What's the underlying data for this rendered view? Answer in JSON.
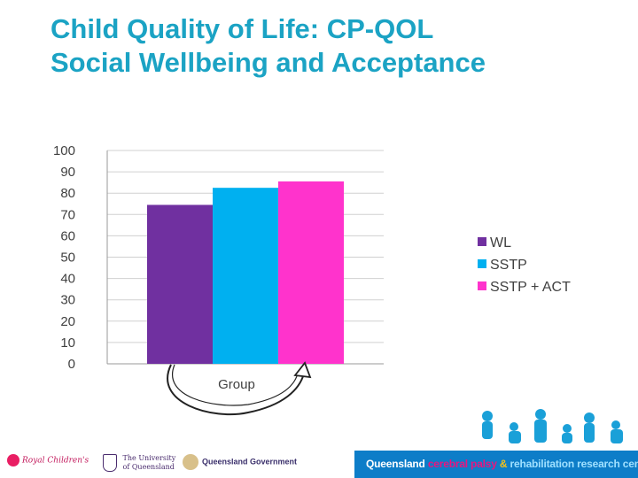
{
  "slide": {
    "title_line1": "Child Quality of Life: CP-QOL",
    "title_line2": "Social Wellbeing and Acceptance"
  },
  "chart_data": {
    "type": "bar",
    "title": "",
    "xlabel": "Group",
    "ylabel": "",
    "ylim": [
      0,
      100
    ],
    "yticks": [
      0,
      10,
      20,
      30,
      40,
      50,
      60,
      70,
      80,
      90,
      100
    ],
    "grid": true,
    "legend_position": "right",
    "categories": [
      "Group"
    ],
    "series": [
      {
        "name": "WL",
        "values": [
          74.5
        ],
        "color": "#7030a0"
      },
      {
        "name": "SSTP",
        "values": [
          82.5
        ],
        "color": "#00b0f0"
      },
      {
        "name": "SSTP + ACT",
        "values": [
          85.5
        ],
        "color": "#ff33cc"
      }
    ],
    "annotation": "curved-arrow-from-WL-to-SSTP+ACT"
  },
  "footer": {
    "logo_rch": "Royal Children's",
    "logo_uq_line1": "The University",
    "logo_uq_line2": "of Queensland",
    "logo_qg": "Queensland Government",
    "text_part1": "Queensland ",
    "text_part2": "cerebral palsy ",
    "text_part3": "& ",
    "text_part4": "rehabilitation research centre",
    "accent_color": "#0d7dc8"
  }
}
